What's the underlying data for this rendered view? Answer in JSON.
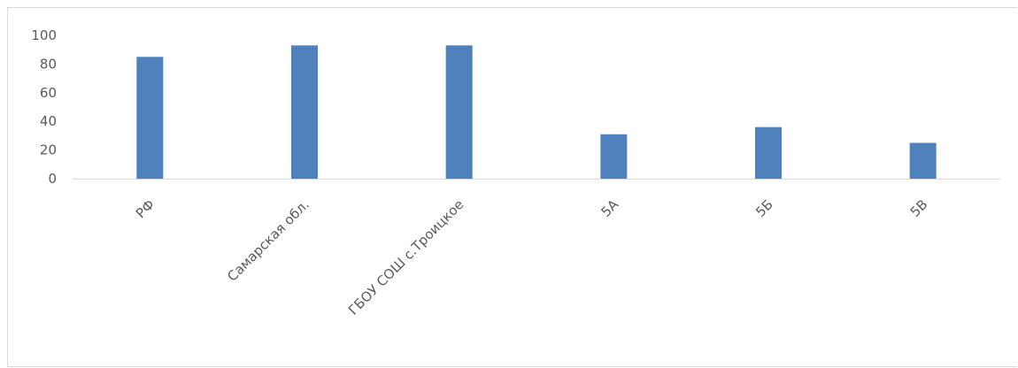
{
  "chart_data": {
    "type": "bar",
    "categories": [
      "РФ",
      "Самарская обл.",
      "ГБОУ СОШ с.Троицкое",
      "5А",
      "5Б",
      "5В"
    ],
    "values": [
      85,
      93,
      93,
      31,
      36,
      25
    ],
    "title": "",
    "xlabel": "",
    "ylabel": "",
    "ylim": [
      0,
      100
    ],
    "yticks": [
      "0",
      "20",
      "40",
      "60",
      "80",
      "100"
    ],
    "grid": false,
    "legend": "none",
    "bar_color": "#4f81bd",
    "axis_color": "#d9d9d9",
    "label_color": "#595959"
  }
}
